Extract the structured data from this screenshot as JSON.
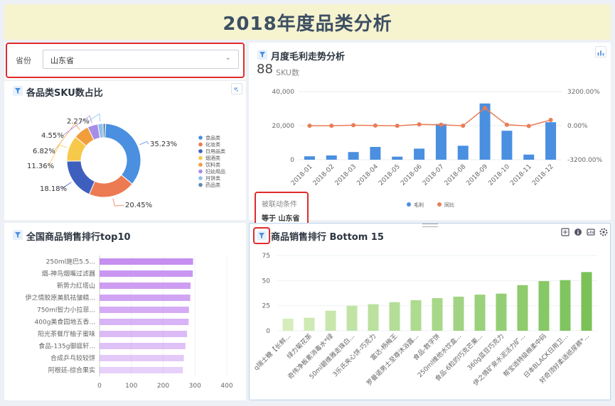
{
  "banner": {
    "title": "2018年度品类分析"
  },
  "filter": {
    "label": "省份",
    "value": "山东省"
  },
  "monthly": {
    "title": "月度毛利走势分析",
    "kpi_value": "88",
    "kpi_unit": "SKU数",
    "passive_label": "被联动条件",
    "passive_value": "等于 山东省"
  },
  "sku_share": {
    "title": "各品类SKU数占比"
  },
  "top10": {
    "title": "全国商品销售排行top10"
  },
  "bottom15": {
    "title": "商品销售排行 Bottom 15"
  },
  "colors": {
    "accent": "#4a8fe0",
    "line": "#ea7c56",
    "purple_bar": "#c58ef0",
    "green_light": "#d4edba",
    "green_dark": "#7bc45b",
    "red_highlight": "#e02b2b",
    "banner_bg": "#f6f3cf"
  },
  "chart_data": [
    {
      "id": "monthly",
      "type": "bar+line",
      "categories": [
        "2018-01",
        "2018-02",
        "2018-03",
        "2018-04",
        "2018-05",
        "2018-06",
        "2018-07",
        "2018-08",
        "2018-09",
        "2018-10",
        "2018-11",
        "2018-12"
      ],
      "series": [
        {
          "name": "毛利",
          "axis": "left",
          "values": [
            2000,
            2500,
            4500,
            7500,
            1800,
            6500,
            21000,
            8200,
            33000,
            17000,
            3000,
            22000
          ]
        },
        {
          "name": "同比",
          "axis": "right",
          "values": [
            -10,
            -10,
            40,
            10,
            -20,
            120,
            80,
            -10,
            1650,
            80,
            -30,
            530
          ]
        }
      ],
      "left_ticks": [
        "40,000",
        "20,000",
        "0"
      ],
      "right_ticks": [
        "3200.00%",
        "0.00%",
        "-3200.00%"
      ],
      "ylim_left": [
        0,
        40000
      ],
      "ylim_right": [
        -3200,
        3200
      ],
      "legend": "bottom"
    },
    {
      "id": "sku_share",
      "type": "donut",
      "labels": [
        "食品类",
        "化妆类",
        "日用品类",
        "烟酒类",
        "饮料类",
        "妇幼用品",
        "月饼类",
        "药品类"
      ],
      "values": [
        35.23,
        20.45,
        18.18,
        11.36,
        6.82,
        4.55,
        2.27,
        1.14
      ],
      "value_labels": [
        "35.23%",
        "20.45%",
        "18.18%",
        "11.36%",
        "6.82%",
        "4.55%",
        "2.27%",
        ""
      ],
      "colors": [
        "#4a8fe0",
        "#ec7a52",
        "#3f5fbf",
        "#f6c94a",
        "#f29d3b",
        "#a78ce8",
        "#8ec1e8",
        "#5b8cb3"
      ],
      "legend": "right"
    },
    {
      "id": "top10",
      "type": "horizontal-bar",
      "categories": [
        "250ml施巴5.5...",
        "烟-神鸟烟嘴过滤器",
        "新势力红塔山",
        "伊之情胶原美肌祛皱精...",
        "750ml智力小拉菲...",
        "400g美食园地五香...",
        "阳光茶餐厅柚子蜜味",
        "食品-135g御庭轩...",
        "合成乒乓较较饼",
        "阿根廷-综合果实"
      ],
      "values": [
        294,
        293,
        286,
        285,
        281,
        280,
        275,
        270,
        265,
        262
      ],
      "ticks": [
        "0",
        "100",
        "200",
        "300",
        "400"
      ],
      "xlim": [
        0,
        400
      ]
    },
    {
      "id": "bottom15",
      "type": "bar",
      "categories": [
        "q瑞士糖【长鲜...",
        "绿力菊花茶",
        "奇伟净板素消毒水*绿",
        "50ml碧维雅走珠白...",
        "3乐氏夹心饼-巧克力",
        "富达-杨梅王",
        "罗曼诺男士至尊沐浴露...",
        "食品-数字饼",
        "250ml维他水饮盒...",
        "食品-6粒的巧克芒果...",
        "360g蓝豆巧克力",
        "伊之情矿泉水泥活力矿...",
        "帮宝适特级棉柔中码",
        "日本BLACK日用卫...",
        "好奇顶好柔适纸尿裤*..."
      ],
      "values": [
        12,
        13,
        20,
        25,
        26.5,
        28.5,
        30.5,
        32.5,
        34,
        36,
        37,
        45.5,
        49.5,
        50.5,
        58.5
      ],
      "ticks": [
        "75",
        "50",
        "25",
        "0"
      ],
      "ylim": [
        0,
        75
      ]
    }
  ]
}
